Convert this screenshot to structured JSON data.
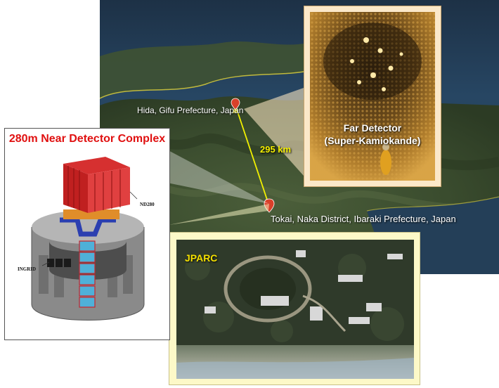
{
  "near_detector": {
    "title": "280m Near Detector Complex",
    "label_nd280": "ND280",
    "label_ingrid": "INGRID"
  },
  "far_detector": {
    "caption_line1": "Far Detector",
    "caption_line2": "(Super-Kamiokande)"
  },
  "jparc": {
    "caption": "JPARC"
  },
  "map": {
    "label_hida": "Hida, Gifu Prefecture, Japan",
    "label_tokai": "Tokai, Naka District, Ibaraki Prefecture, Japan",
    "distance": "295 km"
  }
}
